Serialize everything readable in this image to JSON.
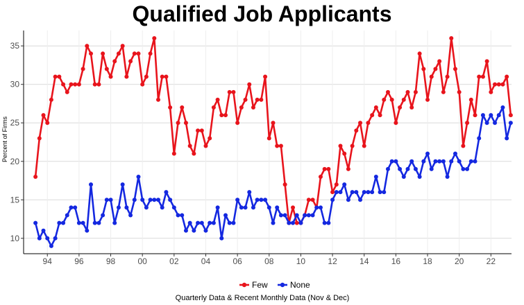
{
  "chart_data": {
    "type": "line",
    "title": "Qualified Job Applicants",
    "ylabel": "Percent of Firms",
    "caption": "Quarterly Data & Recent Monthly Data (Nov & Dec)",
    "ylim": [
      8,
      37
    ],
    "xlim": [
      1992.5,
      2023.3
    ],
    "grid": true,
    "legend_position": "bottom",
    "x_ticks": [
      1994,
      1996,
      1998,
      2000,
      2002,
      2004,
      2006,
      2008,
      2010,
      2012,
      2014,
      2016,
      2018,
      2020,
      2022
    ],
    "x_tick_labels": [
      "94",
      "96",
      "98",
      "00",
      "02",
      "04",
      "06",
      "08",
      "10",
      "12",
      "14",
      "16",
      "18",
      "20",
      "22"
    ],
    "y_ticks": [
      10,
      15,
      20,
      25,
      30,
      35
    ],
    "y_tick_labels": [
      "10",
      "15",
      "20",
      "25",
      "30",
      "35"
    ],
    "series": [
      {
        "name": "Few",
        "color": "#e8141c",
        "values": [
          18,
          23,
          26,
          25,
          28,
          31,
          31,
          30,
          29,
          30,
          30,
          30,
          32,
          35,
          34,
          30,
          30,
          34,
          32,
          31,
          33,
          34,
          35,
          31,
          33,
          34,
          34,
          30,
          31,
          34,
          36,
          28,
          31,
          31,
          27,
          21,
          25,
          27,
          25,
          22,
          21,
          24,
          24,
          22,
          23,
          27,
          28,
          26,
          26,
          29,
          29,
          25,
          27,
          28,
          30,
          27,
          28,
          28,
          31,
          23,
          25,
          22,
          22,
          17,
          12,
          14,
          12,
          12,
          13,
          15,
          15,
          14,
          18,
          19,
          19,
          16,
          17,
          22,
          21,
          19,
          22,
          24,
          25,
          22,
          25,
          26,
          27,
          26,
          28,
          29,
          28,
          25,
          27,
          28,
          29,
          27,
          29,
          34,
          32,
          28,
          31,
          32,
          33,
          29,
          31,
          36,
          32,
          29,
          22,
          25,
          28,
          26,
          31,
          31,
          33,
          29,
          30,
          30,
          30,
          31,
          26
        ]
      },
      {
        "name": "None",
        "color": "#1428e0",
        "values": [
          12,
          10,
          11,
          10,
          9,
          10,
          12,
          12,
          13,
          14,
          14,
          12,
          12,
          11,
          17,
          12,
          12,
          13,
          15,
          15,
          12,
          14,
          17,
          14,
          13,
          15,
          18,
          15,
          14,
          15,
          15,
          15,
          14,
          16,
          15,
          14,
          13,
          13,
          11,
          12,
          11,
          12,
          12,
          11,
          12,
          12,
          14,
          10,
          13,
          12,
          12,
          15,
          14,
          14,
          16,
          14,
          15,
          15,
          15,
          14,
          12,
          14,
          13,
          13,
          12,
          12,
          13,
          12,
          13,
          13,
          13,
          14,
          14,
          12,
          12,
          15,
          16,
          16,
          17,
          15,
          16,
          16,
          15,
          16,
          16,
          16,
          18,
          16,
          16,
          19,
          20,
          20,
          19,
          18,
          19,
          20,
          19,
          18,
          20,
          21,
          19,
          20,
          20,
          20,
          18,
          20,
          21,
          20,
          19,
          19,
          20,
          20,
          23,
          26,
          25,
          26,
          25,
          26,
          27,
          23,
          25
        ]
      }
    ]
  }
}
